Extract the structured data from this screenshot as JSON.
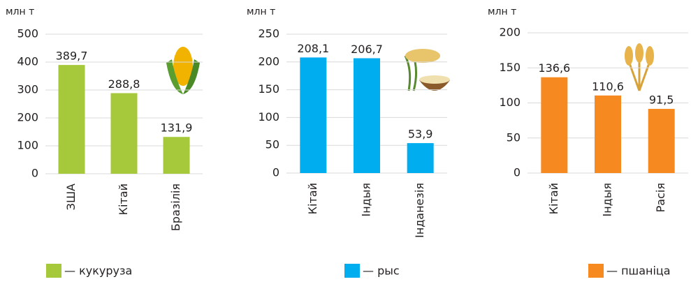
{
  "chart_data": [
    {
      "type": "bar",
      "y_label": "млн т",
      "categories": [
        "ЗША",
        "Кітай",
        "Бразілія"
      ],
      "series": [
        {
          "name": "— кукуруза",
          "color": "#a5c93a",
          "values": [
            389.7,
            288.8,
            131.9
          ],
          "value_labels": [
            "389,7",
            "288,8",
            "131,9"
          ]
        }
      ],
      "ylim": [
        0,
        500
      ],
      "yticks": [
        0,
        100,
        200,
        300,
        400,
        500
      ],
      "grid": true
    },
    {
      "type": "bar",
      "y_label": "млн т",
      "categories": [
        "Кітай",
        "Індыя",
        "Інданезія"
      ],
      "series": [
        {
          "name": "— рыс",
          "color": "#00aeef",
          "values": [
            208.1,
            206.7,
            53.9
          ],
          "value_labels": [
            "208,1",
            "206,7",
            "53,9"
          ]
        }
      ],
      "ylim": [
        0,
        250
      ],
      "yticks": [
        0,
        50,
        100,
        150,
        200,
        250
      ],
      "grid": true
    },
    {
      "type": "bar",
      "y_label": "млн т",
      "categories": [
        "Кітай",
        "Індыя",
        "Расія"
      ],
      "series": [
        {
          "name": "— пшаніца",
          "color": "#f6891f",
          "values": [
            136.6,
            110.6,
            91.5
          ],
          "value_labels": [
            "136,6",
            "110,6",
            "91,5"
          ]
        }
      ],
      "ylim": [
        0,
        200
      ],
      "yticks": [
        0,
        50,
        100,
        150,
        200
      ],
      "grid": true
    }
  ]
}
